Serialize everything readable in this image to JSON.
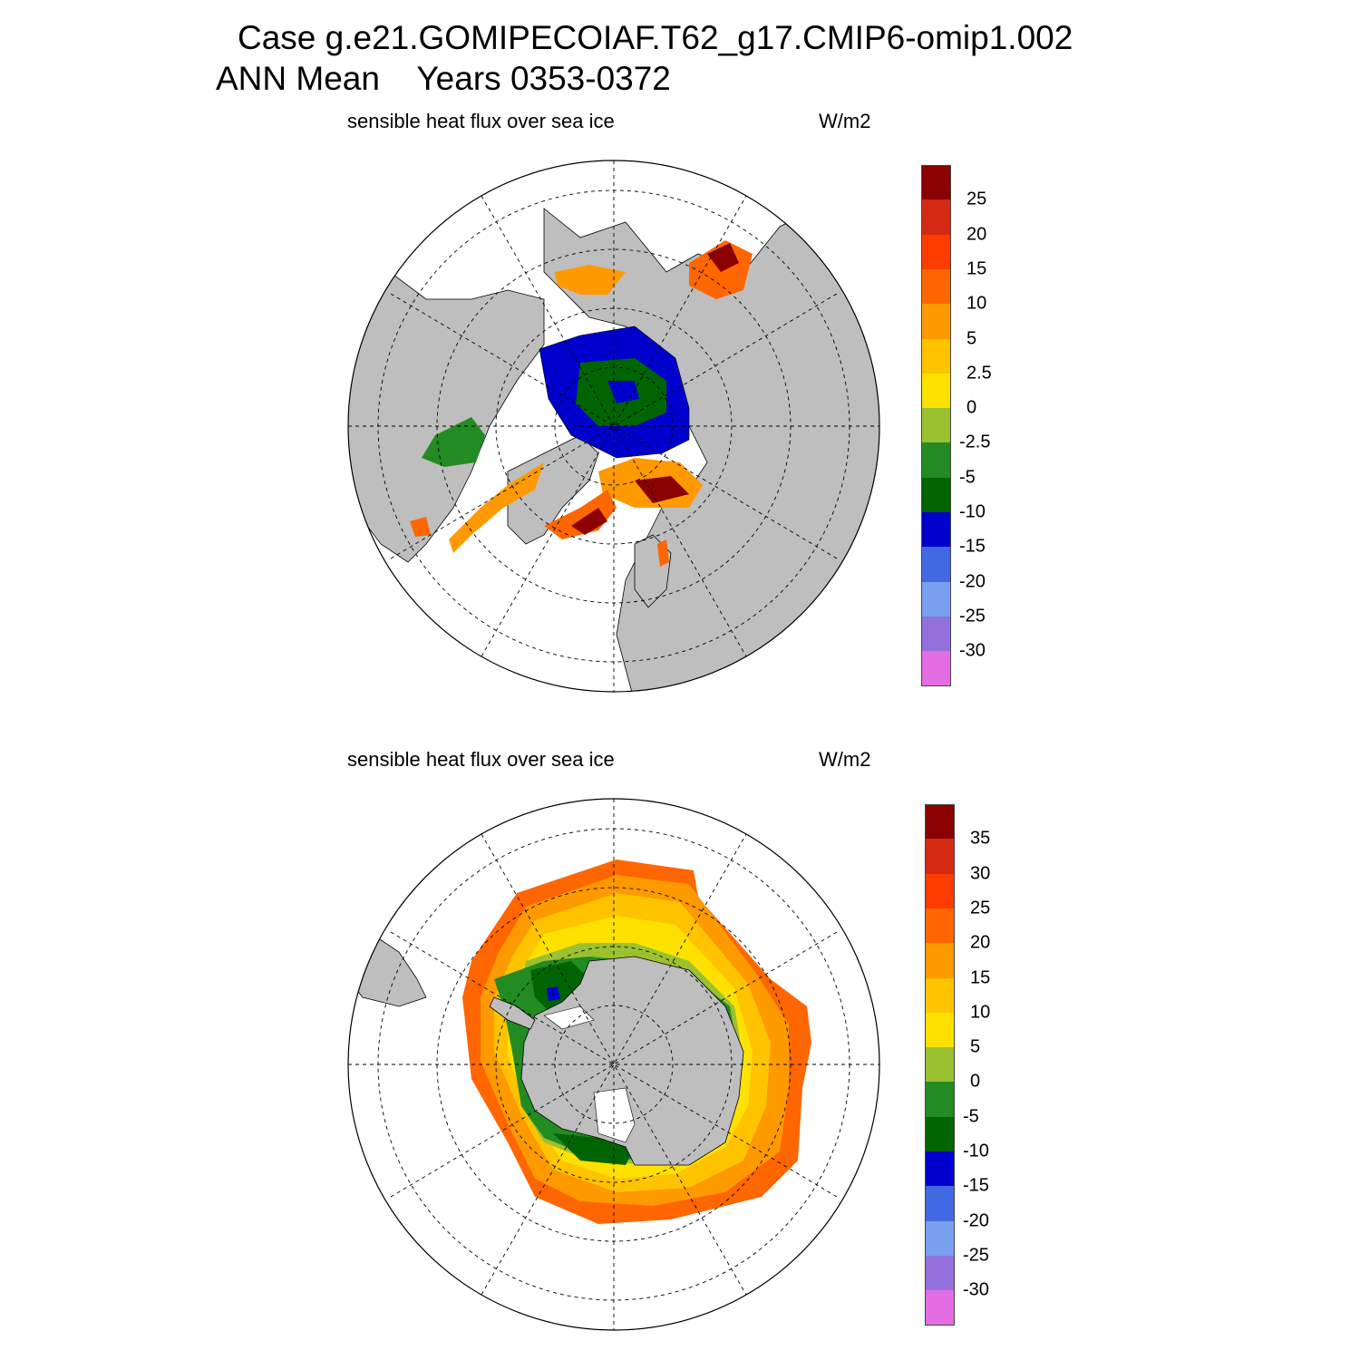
{
  "header": {
    "line1": "Case g.e21.GOMIPECOIAF.T62_g17.CMIP6-omip1.002",
    "line2": "ANN Mean    Years 0353-0372"
  },
  "panels": [
    {
      "hemisphere": "north",
      "title": "sensible heat flux over sea ice",
      "units": "W/m2",
      "colorbar": {
        "colors": [
          "#8b0000",
          "#d42a12",
          "#ff3c00",
          "#ff6600",
          "#ff9900",
          "#ffc300",
          "#ffe100",
          "#9ac130",
          "#228b22",
          "#006400",
          "#0000cd",
          "#4169e1",
          "#7aa0f0",
          "#9370db",
          "#e36ee3"
        ],
        "labels": [
          "25",
          "20",
          "15",
          "10",
          "5",
          "2.5",
          "0",
          "-2.5",
          "-5",
          "-10",
          "-15",
          "-20",
          "-25",
          "-30"
        ]
      }
    },
    {
      "hemisphere": "south",
      "title": "sensible heat flux over sea ice",
      "units": "W/m2",
      "colorbar": {
        "colors": [
          "#8b0000",
          "#d42a12",
          "#ff3c00",
          "#ff6600",
          "#ff9900",
          "#ffc300",
          "#ffe100",
          "#9ac130",
          "#228b22",
          "#006400",
          "#0000cd",
          "#4169e1",
          "#7aa0f0",
          "#9370db",
          "#e36ee3"
        ],
        "labels": [
          "35",
          "30",
          "25",
          "20",
          "15",
          "10",
          "5",
          "0",
          "-5",
          "-10",
          "-15",
          "-20",
          "-25",
          "-30"
        ]
      }
    }
  ]
}
